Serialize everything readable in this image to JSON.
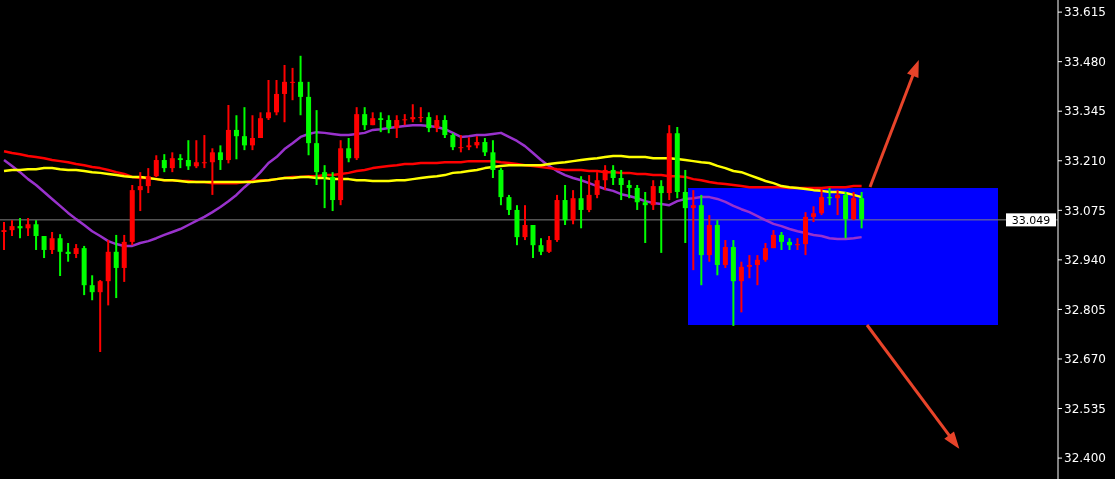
{
  "chart_data": {
    "type": "candlestick",
    "categories": [
      null,
      null,
      null,
      null,
      null,
      null,
      null,
      null,
      null,
      null,
      null,
      null,
      null,
      null,
      null,
      null,
      null,
      null,
      null,
      null,
      null,
      null,
      null,
      null,
      null,
      null,
      null,
      null,
      null,
      null,
      null,
      null,
      null,
      null,
      null,
      null,
      null,
      null,
      null,
      null,
      null,
      null,
      null,
      null,
      null,
      null,
      null,
      null,
      null,
      null,
      null,
      null,
      null,
      null,
      null,
      null,
      null,
      null,
      null,
      null,
      null,
      null,
      null,
      null,
      null,
      null,
      null,
      null,
      null,
      null,
      null,
      null,
      null,
      null,
      null,
      null,
      null,
      null,
      null,
      null,
      null,
      null,
      null,
      null,
      null,
      null,
      null,
      null,
      null,
      null,
      null,
      null,
      null,
      null,
      null,
      null,
      null,
      null,
      null,
      null,
      null,
      null,
      null,
      null,
      null,
      null,
      null,
      null,
      null,
      null,
      null,
      null,
      null,
      null,
      null,
      null,
      null,
      null,
      null,
      null,
      null,
      null,
      null,
      null,
      null,
      null,
      null,
      null,
      null,
      null,
      null,
      null
    ],
    "ohlc": [
      [
        33.016,
        33.043,
        32.967,
        33.021
      ],
      [
        33.021,
        33.048,
        33.005,
        33.032
      ],
      [
        33.032,
        33.054,
        32.999,
        33.026
      ],
      [
        33.026,
        33.054,
        33.005,
        33.037
      ],
      [
        33.037,
        33.048,
        32.967,
        33.005
      ],
      [
        33.005,
        33.005,
        32.945,
        32.967
      ],
      [
        32.967,
        33.016,
        32.956,
        32.999
      ],
      [
        32.999,
        33.01,
        32.896,
        32.962
      ],
      [
        32.962,
        32.986,
        32.935,
        32.956
      ],
      [
        32.956,
        32.983,
        32.945,
        32.972
      ],
      [
        32.972,
        32.978,
        32.844,
        32.871
      ],
      [
        32.871,
        32.898,
        32.83,
        32.852
      ],
      [
        32.852,
        32.885,
        32.689,
        32.882
      ],
      [
        32.882,
        32.994,
        32.816,
        32.962
      ],
      [
        32.962,
        33.008,
        32.836,
        32.918
      ],
      [
        32.918,
        33.008,
        32.88,
        32.989
      ],
      [
        32.989,
        33.144,
        32.98,
        33.13
      ],
      [
        33.13,
        33.179,
        33.073,
        33.141
      ],
      [
        33.141,
        33.19,
        33.122,
        33.168
      ],
      [
        33.168,
        33.225,
        33.165,
        33.212
      ],
      [
        33.212,
        33.228,
        33.179,
        33.19
      ],
      [
        33.19,
        33.233,
        33.179,
        33.217
      ],
      [
        33.217,
        33.228,
        33.19,
        33.212
      ],
      [
        33.212,
        33.266,
        33.185,
        33.195
      ],
      [
        33.195,
        33.266,
        33.19,
        33.206
      ],
      [
        33.206,
        33.28,
        33.19,
        33.206
      ],
      [
        33.206,
        33.244,
        33.117,
        33.233
      ],
      [
        33.233,
        33.252,
        33.185,
        33.212
      ],
      [
        33.212,
        33.362,
        33.203,
        33.294
      ],
      [
        33.294,
        33.334,
        33.214,
        33.277
      ],
      [
        33.277,
        33.356,
        33.239,
        33.252
      ],
      [
        33.252,
        33.334,
        33.239,
        33.272
      ],
      [
        33.272,
        33.342,
        33.272,
        33.326
      ],
      [
        33.326,
        33.43,
        33.321,
        33.342
      ],
      [
        33.342,
        33.43,
        33.334,
        33.392
      ],
      [
        33.392,
        33.471,
        33.315,
        33.425
      ],
      [
        33.425,
        33.463,
        33.375,
        33.425
      ],
      [
        33.425,
        33.496,
        33.334,
        33.384
      ],
      [
        33.384,
        33.425,
        33.225,
        33.258
      ],
      [
        33.258,
        33.348,
        33.144,
        33.179
      ],
      [
        33.179,
        33.198,
        33.081,
        33.166
      ],
      [
        33.166,
        33.179,
        33.073,
        33.103
      ],
      [
        33.103,
        33.266,
        33.089,
        33.244
      ],
      [
        33.244,
        33.272,
        33.206,
        33.217
      ],
      [
        33.217,
        33.356,
        33.212,
        33.337
      ],
      [
        33.337,
        33.356,
        33.294,
        33.307
      ],
      [
        33.307,
        33.342,
        33.307,
        33.326
      ],
      [
        33.326,
        33.342,
        33.288,
        33.321
      ],
      [
        33.321,
        33.334,
        33.285,
        33.299
      ],
      [
        33.299,
        33.334,
        33.272,
        33.321
      ],
      [
        33.321,
        33.337,
        33.307,
        33.323
      ],
      [
        33.323,
        33.364,
        33.315,
        33.329
      ],
      [
        33.329,
        33.356,
        33.315,
        33.329
      ],
      [
        33.329,
        33.342,
        33.288,
        33.299
      ],
      [
        33.299,
        33.334,
        33.288,
        33.321
      ],
      [
        33.321,
        33.334,
        33.272,
        33.28
      ],
      [
        33.28,
        33.285,
        33.239,
        33.247
      ],
      [
        33.247,
        33.28,
        33.233,
        33.247
      ],
      [
        33.247,
        33.274,
        33.239,
        33.252
      ],
      [
        33.252,
        33.277,
        33.244,
        33.261
      ],
      [
        33.261,
        33.272,
        33.223,
        33.233
      ],
      [
        33.233,
        33.266,
        33.163,
        33.185
      ],
      [
        33.185,
        33.19,
        33.089,
        33.111
      ],
      [
        33.111,
        33.117,
        33.062,
        33.076
      ],
      [
        33.076,
        33.089,
        32.98,
        33.002
      ],
      [
        33.002,
        33.089,
        32.994,
        33.035
      ],
      [
        33.035,
        33.035,
        32.945,
        32.98
      ],
      [
        32.98,
        32.999,
        32.953,
        32.962
      ],
      [
        32.962,
        33.005,
        32.959,
        32.994
      ],
      [
        32.994,
        33.117,
        32.989,
        33.103
      ],
      [
        33.103,
        33.144,
        33.035,
        33.048
      ],
      [
        33.048,
        33.13,
        33.037,
        33.108
      ],
      [
        33.108,
        33.168,
        33.026,
        33.076
      ],
      [
        33.076,
        33.171,
        33.07,
        33.117
      ],
      [
        33.117,
        33.179,
        33.108,
        33.157
      ],
      [
        33.157,
        33.198,
        33.13,
        33.185
      ],
      [
        33.185,
        33.198,
        33.144,
        33.163
      ],
      [
        33.163,
        33.185,
        33.103,
        33.144
      ],
      [
        33.144,
        33.157,
        33.108,
        33.136
      ],
      [
        33.136,
        33.144,
        33.076,
        33.097
      ],
      [
        33.097,
        33.125,
        32.986,
        33.089
      ],
      [
        33.089,
        33.157,
        33.076,
        33.141
      ],
      [
        33.141,
        33.157,
        32.959,
        33.122
      ],
      [
        33.122,
        33.307,
        33.103,
        33.285
      ],
      [
        33.285,
        33.302,
        33.108,
        33.125
      ],
      [
        33.125,
        33.185,
        32.986,
        33.081
      ],
      [
        33.081,
        33.13,
        32.912,
        33.089
      ],
      [
        33.089,
        33.117,
        32.871,
        32.953
      ],
      [
        32.953,
        33.062,
        32.935,
        33.035
      ],
      [
        33.035,
        33.048,
        32.898,
        32.926
      ],
      [
        32.926,
        32.994,
        32.918,
        32.975
      ],
      [
        32.975,
        32.994,
        32.76,
        32.882
      ],
      [
        32.882,
        32.935,
        32.797,
        32.921
      ],
      [
        32.921,
        32.953,
        32.89,
        32.926
      ],
      [
        32.926,
        32.953,
        32.871,
        32.94
      ],
      [
        32.94,
        32.986,
        32.935,
        32.972
      ],
      [
        32.972,
        33.021,
        32.972,
        33.008
      ],
      [
        33.008,
        33.016,
        32.967,
        32.989
      ],
      [
        32.989,
        32.999,
        32.967,
        32.98
      ],
      [
        32.98,
        32.999,
        32.967,
        32.983
      ],
      [
        32.983,
        33.07,
        32.953,
        33.057
      ],
      [
        33.057,
        33.086,
        33.043,
        33.067
      ],
      [
        33.067,
        33.136,
        33.062,
        33.111
      ],
      [
        33.111,
        33.136,
        33.089,
        33.108
      ],
      [
        33.108,
        33.13,
        33.062,
        33.117
      ],
      [
        33.117,
        33.125,
        32.999,
        33.051
      ],
      [
        33.051,
        33.125,
        33.048,
        33.108
      ],
      [
        33.108,
        33.125,
        33.026,
        33.051
      ],
      null,
      null,
      null,
      null,
      null,
      null,
      null,
      null,
      null,
      null,
      null,
      null,
      null,
      null,
      null,
      null,
      null,
      null,
      null,
      null,
      null,
      null,
      null,
      null
    ],
    "series": [
      {
        "type": "line",
        "color": "#9932cc",
        "values": [
          33.212,
          33.196,
          33.179,
          33.16,
          33.144,
          33.125,
          33.106,
          33.087,
          33.068,
          33.051,
          33.035,
          33.018,
          33.005,
          32.991,
          32.983,
          32.978,
          32.978,
          32.986,
          32.991,
          32.999,
          33.008,
          33.016,
          33.024,
          33.035,
          33.046,
          33.057,
          33.07,
          33.084,
          33.1,
          33.117,
          33.138,
          33.157,
          33.179,
          33.204,
          33.22,
          33.242,
          33.258,
          33.275,
          33.283,
          33.288,
          33.286,
          33.283,
          33.28,
          33.28,
          33.283,
          33.286,
          33.294,
          33.296,
          33.299,
          33.302,
          33.305,
          33.307,
          33.307,
          33.305,
          33.302,
          33.296,
          33.286,
          33.275,
          33.277,
          33.28,
          33.28,
          33.283,
          33.286,
          33.275,
          33.264,
          33.25,
          33.231,
          33.212,
          33.196,
          33.182,
          33.171,
          33.163,
          33.157,
          33.149,
          33.141,
          33.133,
          33.128,
          33.119,
          33.114,
          33.108,
          33.1,
          33.095,
          33.092,
          33.089,
          33.1,
          33.106,
          33.108,
          33.111,
          33.111,
          33.106,
          33.098,
          33.087,
          33.078,
          33.07,
          33.059,
          33.048,
          33.038,
          33.032,
          33.024,
          33.018,
          33.013,
          33.008,
          33.005,
          32.999,
          32.997,
          32.997,
          32.999,
          33.002,
          null,
          null,
          null,
          null,
          null,
          null,
          null,
          null,
          null,
          null,
          null,
          null,
          null,
          null,
          null,
          null,
          null,
          null,
          null,
          null,
          null,
          null,
          null,
          null
        ]
      },
      {
        "type": "line",
        "color": "#ff0000",
        "values": [
          33.236,
          33.231,
          33.228,
          33.223,
          33.22,
          33.217,
          33.212,
          33.209,
          33.206,
          33.201,
          33.198,
          33.193,
          33.19,
          33.185,
          33.179,
          33.174,
          33.166,
          33.163,
          33.163,
          33.16,
          33.157,
          33.157,
          33.155,
          33.155,
          33.152,
          33.152,
          33.149,
          33.149,
          33.149,
          33.149,
          33.152,
          33.155,
          33.157,
          33.157,
          33.16,
          33.163,
          33.166,
          33.166,
          33.168,
          33.168,
          33.171,
          33.171,
          33.174,
          33.177,
          33.182,
          33.185,
          33.19,
          33.193,
          33.196,
          33.198,
          33.201,
          33.201,
          33.204,
          33.204,
          33.204,
          33.206,
          33.206,
          33.206,
          33.209,
          33.209,
          33.209,
          33.209,
          33.206,
          33.204,
          33.201,
          33.198,
          33.196,
          33.193,
          33.19,
          33.187,
          33.185,
          33.185,
          33.185,
          33.182,
          33.182,
          33.179,
          33.179,
          33.177,
          33.177,
          33.174,
          33.174,
          33.171,
          33.171,
          33.168,
          33.168,
          33.166,
          33.16,
          33.157,
          33.152,
          33.149,
          33.147,
          33.144,
          33.141,
          33.138,
          33.138,
          33.138,
          33.138,
          33.138,
          33.136,
          33.136,
          33.136,
          33.136,
          33.136,
          33.138,
          33.138,
          33.138,
          33.141,
          33.141,
          null,
          null,
          null,
          null,
          null,
          null,
          null,
          null,
          null,
          null,
          null,
          null,
          null,
          null,
          null,
          null,
          null,
          null,
          null,
          null,
          null,
          null,
          null,
          null
        ]
      },
      {
        "type": "line",
        "color": "#ffff00",
        "values": [
          33.182,
          33.185,
          33.185,
          33.187,
          33.187,
          33.19,
          33.19,
          33.187,
          33.185,
          33.185,
          33.182,
          33.179,
          33.177,
          33.174,
          33.171,
          33.168,
          33.166,
          33.166,
          33.163,
          33.16,
          33.157,
          33.157,
          33.155,
          33.152,
          33.152,
          33.152,
          33.152,
          33.152,
          33.152,
          33.152,
          33.152,
          33.152,
          33.155,
          33.157,
          33.16,
          33.163,
          33.163,
          33.166,
          33.166,
          33.163,
          33.163,
          33.16,
          33.16,
          33.16,
          33.157,
          33.157,
          33.155,
          33.155,
          33.155,
          33.157,
          33.157,
          33.16,
          33.163,
          33.166,
          33.168,
          33.171,
          33.177,
          33.179,
          33.182,
          33.185,
          33.19,
          33.193,
          33.196,
          33.198,
          33.198,
          33.198,
          33.198,
          33.198,
          33.201,
          33.204,
          33.206,
          33.209,
          33.212,
          33.215,
          33.217,
          33.22,
          33.223,
          33.223,
          33.22,
          33.22,
          33.22,
          33.217,
          33.217,
          33.217,
          33.215,
          33.212,
          33.209,
          33.206,
          33.204,
          33.196,
          33.19,
          33.182,
          33.179,
          33.171,
          33.163,
          33.155,
          33.149,
          33.141,
          33.138,
          33.136,
          33.133,
          33.13,
          33.128,
          33.125,
          33.125,
          33.122,
          33.117,
          33.111,
          null,
          null,
          null,
          null,
          null,
          null,
          null,
          null,
          null,
          null,
          null,
          null,
          null,
          null,
          null,
          null,
          null,
          null,
          null,
          null,
          null,
          null,
          null,
          null
        ]
      }
    ],
    "ylim": [
      32.343,
      33.648
    ],
    "yticks": [
      33.615,
      {
        "value": 33.48,
        "label": "33.480"
      },
      33.345,
      {
        "value": 33.21,
        "label": "33.210"
      },
      33.075,
      {
        "value": 32.94,
        "label": "32.940"
      },
      32.805,
      {
        "value": 32.67,
        "label": "32.670"
      },
      32.535,
      {
        "value": 32.4,
        "label": "32.400"
      }
    ],
    "tick_labels": "y",
    "ref_lines": [
      {
        "axis": "y",
        "value": 33.049,
        "label": "33.049",
        "color": "#808080"
      }
    ]
  }
}
